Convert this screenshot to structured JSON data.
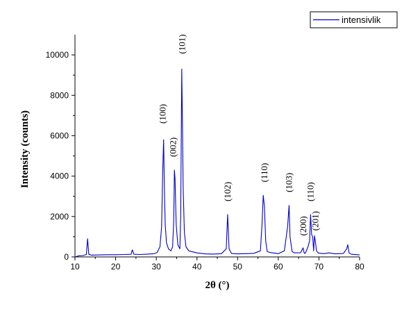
{
  "chart_data": {
    "type": "line",
    "xlabel": "2θ (°)",
    "ylabel": "Intensity (counts)",
    "xlim": [
      10,
      80
    ],
    "ylim": [
      0,
      11000
    ],
    "x_ticks": [
      10,
      20,
      30,
      40,
      50,
      60,
      70,
      80
    ],
    "y_ticks": [
      0,
      2000,
      4000,
      6000,
      8000,
      10000
    ],
    "legend": {
      "position": "top-right"
    },
    "grid": false,
    "series": [
      {
        "name": "intensivlik",
        "color": "#0000cc",
        "x": [
          10,
          11,
          12,
          12.8,
          13.1,
          13.4,
          14,
          16,
          18,
          20,
          22,
          23.8,
          24.1,
          24.5,
          26,
          28,
          29.5,
          30.2,
          30.9,
          31.3,
          31.6,
          31.8,
          32.0,
          32.2,
          32.5,
          33,
          33.6,
          34.0,
          34.3,
          34.45,
          34.6,
          34.9,
          35.3,
          35.8,
          36.0,
          36.25,
          36.45,
          36.6,
          36.9,
          37.3,
          38,
          40,
          42,
          44,
          46,
          47.2,
          47.55,
          47.9,
          48.5,
          50,
          52,
          54,
          55.6,
          56.0,
          56.3,
          56.6,
          56.9,
          57.3,
          58,
          60,
          61.5,
          62.3,
          62.65,
          62.9,
          63.4,
          64,
          65.5,
          66.1,
          66.4,
          66.7,
          67.3,
          67.7,
          67.95,
          68.2,
          68.45,
          68.7,
          68.9,
          69.1,
          69.4,
          69.8,
          71,
          72.5,
          74,
          76,
          76.8,
          77.1,
          77.4,
          78,
          80
        ],
        "values": [
          0,
          60,
          70,
          120,
          900,
          130,
          90,
          100,
          110,
          110,
          120,
          130,
          350,
          130,
          120,
          140,
          160,
          220,
          500,
          1500,
          4400,
          5800,
          3200,
          1600,
          700,
          400,
          300,
          500,
          1800,
          4300,
          3900,
          1600,
          600,
          400,
          2000,
          9300,
          6400,
          3500,
          1200,
          500,
          300,
          200,
          150,
          140,
          160,
          400,
          2100,
          400,
          170,
          150,
          160,
          180,
          300,
          1600,
          3050,
          2500,
          800,
          260,
          220,
          160,
          300,
          1500,
          2550,
          1000,
          260,
          200,
          210,
          450,
          180,
          200,
          500,
          800,
          2100,
          1100,
          1000,
          300,
          1050,
          800,
          300,
          200,
          160,
          200,
          150,
          170,
          400,
          600,
          200,
          130,
          100
        ]
      }
    ],
    "annotations": [
      {
        "text": "(100)",
        "x": 31.6,
        "y": 6600
      },
      {
        "text": "(002)",
        "x": 34.2,
        "y": 4950
      },
      {
        "text": "(101)",
        "x": 36.35,
        "y": 10050
      },
      {
        "text": "(102)",
        "x": 47.55,
        "y": 2750
      },
      {
        "text": "(110)",
        "x": 56.6,
        "y": 3700
      },
      {
        "text": "(103)",
        "x": 62.65,
        "y": 3200
      },
      {
        "text": "(200)",
        "x": 66.2,
        "y": 1050
      },
      {
        "text": "(110)",
        "x": 67.95,
        "y": 2750
      },
      {
        "text": "(201)",
        "x": 69.2,
        "y": 1300
      }
    ]
  }
}
